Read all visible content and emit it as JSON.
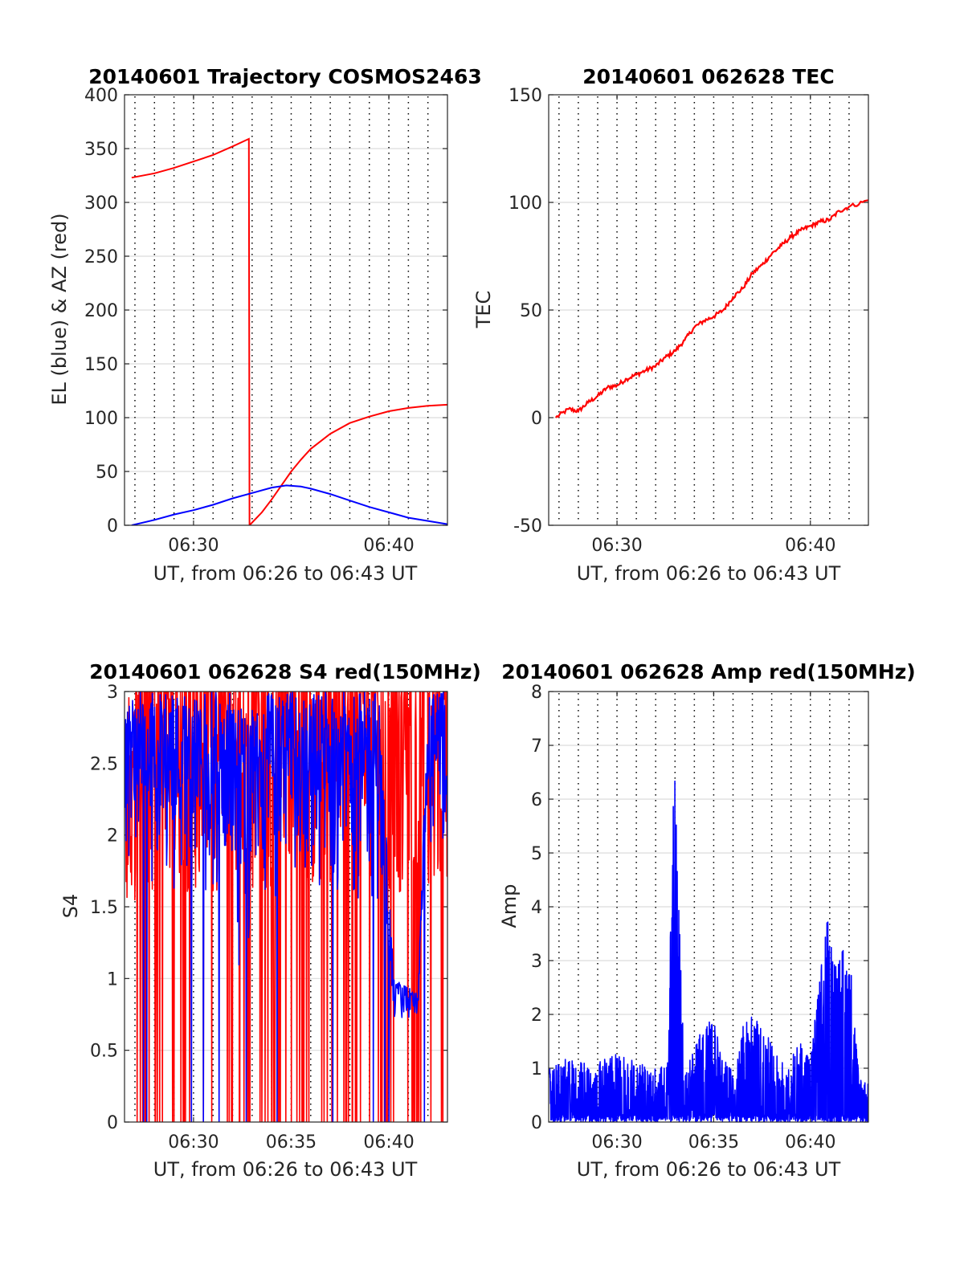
{
  "figure": {
    "colors": {
      "red": "#ff0000",
      "blue": "#0000ff",
      "grid": "#dcdcdc",
      "axis": "#262626"
    }
  },
  "chart_data": [
    {
      "id": "trajectory",
      "type": "line",
      "title": "20140601 Trajectory COSMOS2463",
      "xlabel": "UT, from 06:26 to 06:43 UT",
      "ylabel": "EL (blue) & AZ (red)",
      "xlim": [
        "06:26:28",
        "06:43:00"
      ],
      "ylim": [
        0,
        400
      ],
      "yticks": [
        0,
        50,
        100,
        150,
        200,
        250,
        300,
        350,
        400
      ],
      "ytick_labels": [
        "0",
        "50",
        "100",
        "150",
        "200",
        "250",
        "300",
        "350",
        "400"
      ],
      "xticks": [
        "06:30",
        "06:40"
      ],
      "x_gridlines_every_minutes": 1,
      "series": [
        {
          "color": "#ff0000",
          "points": [
            [
              "06:26:50",
              323
            ],
            [
              "06:28:00",
              327
            ],
            [
              "06:29:00",
              332
            ],
            [
              "06:30:00",
              338
            ],
            [
              "06:31:00",
              344
            ],
            [
              "06:32:00",
              352
            ],
            [
              "06:32:50",
              359
            ],
            [
              "06:32:52",
              0
            ],
            [
              "06:33:30",
              12
            ],
            [
              "06:34:00",
              24
            ],
            [
              "06:34:30",
              37
            ],
            [
              "06:35:00",
              50
            ],
            [
              "06:35:30",
              61
            ],
            [
              "06:36:00",
              71
            ],
            [
              "06:37:00",
              85
            ],
            [
              "06:38:00",
              95
            ],
            [
              "06:39:00",
              101
            ],
            [
              "06:40:00",
              106
            ],
            [
              "06:41:00",
              109
            ],
            [
              "06:42:00",
              111
            ],
            [
              "06:43:00",
              112
            ]
          ]
        },
        {
          "color": "#0000ff",
          "points": [
            [
              "06:26:50",
              0
            ],
            [
              "06:28:00",
              5
            ],
            [
              "06:29:00",
              10
            ],
            [
              "06:30:00",
              14
            ],
            [
              "06:31:00",
              19
            ],
            [
              "06:32:00",
              25
            ],
            [
              "06:33:00",
              30
            ],
            [
              "06:34:00",
              35
            ],
            [
              "06:34:45",
              37
            ],
            [
              "06:35:30",
              36
            ],
            [
              "06:36:00",
              34
            ],
            [
              "06:37:00",
              29
            ],
            [
              "06:38:00",
              23
            ],
            [
              "06:39:00",
              17
            ],
            [
              "06:40:00",
              12
            ],
            [
              "06:41:00",
              7
            ],
            [
              "06:42:00",
              4
            ],
            [
              "06:43:00",
              1
            ]
          ]
        }
      ]
    },
    {
      "id": "tec",
      "type": "line",
      "title": "20140601 062628 TEC",
      "xlabel": "UT, from 06:26 to 06:43 UT",
      "ylabel": "TEC",
      "xlim": [
        "06:26:28",
        "06:43:00"
      ],
      "ylim": [
        -50,
        150
      ],
      "yticks": [
        -50,
        0,
        50,
        100,
        150
      ],
      "ytick_labels": [
        "-50",
        "0",
        "50",
        "100",
        "150"
      ],
      "xticks": [
        "06:30",
        "06:40"
      ],
      "x_gridlines_every_minutes": 1,
      "series": [
        {
          "color": "#ff0000",
          "points": [
            [
              "06:26:50",
              0
            ],
            [
              "06:27:30",
              4
            ],
            [
              "06:28:00",
              3
            ],
            [
              "06:28:30",
              7
            ],
            [
              "06:29:00",
              10
            ],
            [
              "06:29:30",
              14
            ],
            [
              "06:30:00",
              15
            ],
            [
              "06:30:30",
              18
            ],
            [
              "06:31:00",
              20
            ],
            [
              "06:31:30",
              22
            ],
            [
              "06:32:00",
              24
            ],
            [
              "06:32:30",
              28
            ],
            [
              "06:33:00",
              31
            ],
            [
              "06:33:30",
              36
            ],
            [
              "06:34:00",
              42
            ],
            [
              "06:34:30",
              45
            ],
            [
              "06:35:00",
              47
            ],
            [
              "06:35:30",
              50
            ],
            [
              "06:36:00",
              56
            ],
            [
              "06:36:30",
              60
            ],
            [
              "06:37:00",
              67
            ],
            [
              "06:37:30",
              71
            ],
            [
              "06:38:00",
              76
            ],
            [
              "06:38:30",
              80
            ],
            [
              "06:39:00",
              84
            ],
            [
              "06:39:30",
              87
            ],
            [
              "06:40:00",
              89
            ],
            [
              "06:40:30",
              91
            ],
            [
              "06:41:00",
              92
            ],
            [
              "06:41:30",
              96
            ],
            [
              "06:42:00",
              98
            ],
            [
              "06:43:00",
              101
            ]
          ]
        }
      ]
    },
    {
      "id": "s4",
      "type": "line",
      "title": "20140601 062628 S4 red(150MHz)",
      "xlabel": "UT, from 06:26 to 06:43 UT",
      "ylabel": "S4",
      "xlim": [
        "06:26:28",
        "06:43:00"
      ],
      "ylim": [
        0,
        3
      ],
      "yticks": [
        0,
        0.5,
        1,
        1.5,
        2,
        2.5,
        3
      ],
      "ytick_labels": [
        "0",
        "0.5",
        "1",
        "1.5",
        "2",
        "2.5",
        "3"
      ],
      "xticks": [
        "06:30",
        "06:35",
        "06:40"
      ],
      "x_gridlines_every_minutes": 1,
      "series": [
        {
          "color": "#ff0000",
          "envelope": [
            [
              "06:26:30",
              1.4,
              3.0
            ],
            [
              "06:27:30",
              0.0,
              3.0
            ],
            [
              "06:29:00",
              0.0,
              3.0
            ],
            [
              "06:30:30",
              0.0,
              3.0
            ],
            [
              "06:32:00",
              0.0,
              3.0
            ],
            [
              "06:33:00",
              0.0,
              3.0
            ],
            [
              "06:34:00",
              0.0,
              3.0
            ],
            [
              "06:35:00",
              0.0,
              3.0
            ],
            [
              "06:36:00",
              0.0,
              3.0
            ],
            [
              "06:37:00",
              0.0,
              3.0
            ],
            [
              "06:38:00",
              0.0,
              3.0
            ],
            [
              "06:39:00",
              0.0,
              3.0
            ],
            [
              "06:40:00",
              0.0,
              3.0
            ],
            [
              "06:41:00",
              0.0,
              3.0
            ],
            [
              "06:42:00",
              0.0,
              3.0
            ],
            [
              "06:43:00",
              0.0,
              3.0
            ]
          ]
        },
        {
          "color": "#0000ff",
          "envelope": [
            [
              "06:26:30",
              1.5,
              3.0
            ],
            [
              "06:27:30",
              1.6,
              3.0
            ],
            [
              "06:29:00",
              1.5,
              3.0
            ],
            [
              "06:30:30",
              1.3,
              3.0
            ],
            [
              "06:32:00",
              1.4,
              3.0
            ],
            [
              "06:32:45",
              0.6,
              2.8
            ],
            [
              "06:33:30",
              1.4,
              3.0
            ],
            [
              "06:35:00",
              1.5,
              3.0
            ],
            [
              "06:36:30",
              1.4,
              3.0
            ],
            [
              "06:38:00",
              1.5,
              3.0
            ],
            [
              "06:39:30",
              1.3,
              3.0
            ],
            [
              "06:40:15",
              0.6,
              1.0
            ],
            [
              "06:41:30",
              0.7,
              0.9
            ],
            [
              "06:42:00",
              1.6,
              3.0
            ],
            [
              "06:43:00",
              1.6,
              3.0
            ]
          ]
        }
      ]
    },
    {
      "id": "amp",
      "type": "line",
      "title": "20140601 062628 Amp red(150MHz)",
      "xlabel": "UT, from 06:26 to 06:43 UT",
      "ylabel": "Amp",
      "xlim": [
        "06:26:28",
        "06:43:00"
      ],
      "ylim": [
        0,
        8
      ],
      "yticks": [
        0,
        1,
        2,
        3,
        4,
        5,
        6,
        7,
        8
      ],
      "ytick_labels": [
        "0",
        "1",
        "2",
        "3",
        "4",
        "5",
        "6",
        "7",
        "8"
      ],
      "xticks": [
        "06:30",
        "06:35",
        "06:40"
      ],
      "x_gridlines_every_minutes": 1,
      "series": [
        {
          "color": "#0000ff",
          "envelope": [
            [
              "06:26:30",
              0,
              1.0
            ],
            [
              "06:27:30",
              0,
              1.2
            ],
            [
              "06:29:00",
              0,
              1.1
            ],
            [
              "06:30:00",
              0,
              1.3
            ],
            [
              "06:31:00",
              0,
              1.1
            ],
            [
              "06:32:00",
              0,
              1.0
            ],
            [
              "06:32:40",
              0,
              1.2
            ],
            [
              "06:32:55",
              0,
              7.5
            ],
            [
              "06:33:10",
              0,
              4.4
            ],
            [
              "06:33:30",
              0,
              0.9
            ],
            [
              "06:34:30",
              0,
              2.0
            ],
            [
              "06:35:00",
              0,
              1.9
            ],
            [
              "06:35:30",
              0,
              1.2
            ],
            [
              "06:36:00",
              0,
              1.0
            ],
            [
              "06:36:40",
              0,
              2.1
            ],
            [
              "06:37:30",
              0,
              1.8
            ],
            [
              "06:38:30",
              0,
              1.1
            ],
            [
              "06:39:30",
              0,
              1.5
            ],
            [
              "06:40:00",
              0,
              1.2
            ],
            [
              "06:40:50",
              0,
              3.8
            ],
            [
              "06:41:30",
              0,
              3.2
            ],
            [
              "06:42:00",
              0,
              3.4
            ],
            [
              "06:42:30",
              0,
              0.9
            ],
            [
              "06:43:00",
              0,
              0.7
            ]
          ]
        }
      ]
    }
  ]
}
